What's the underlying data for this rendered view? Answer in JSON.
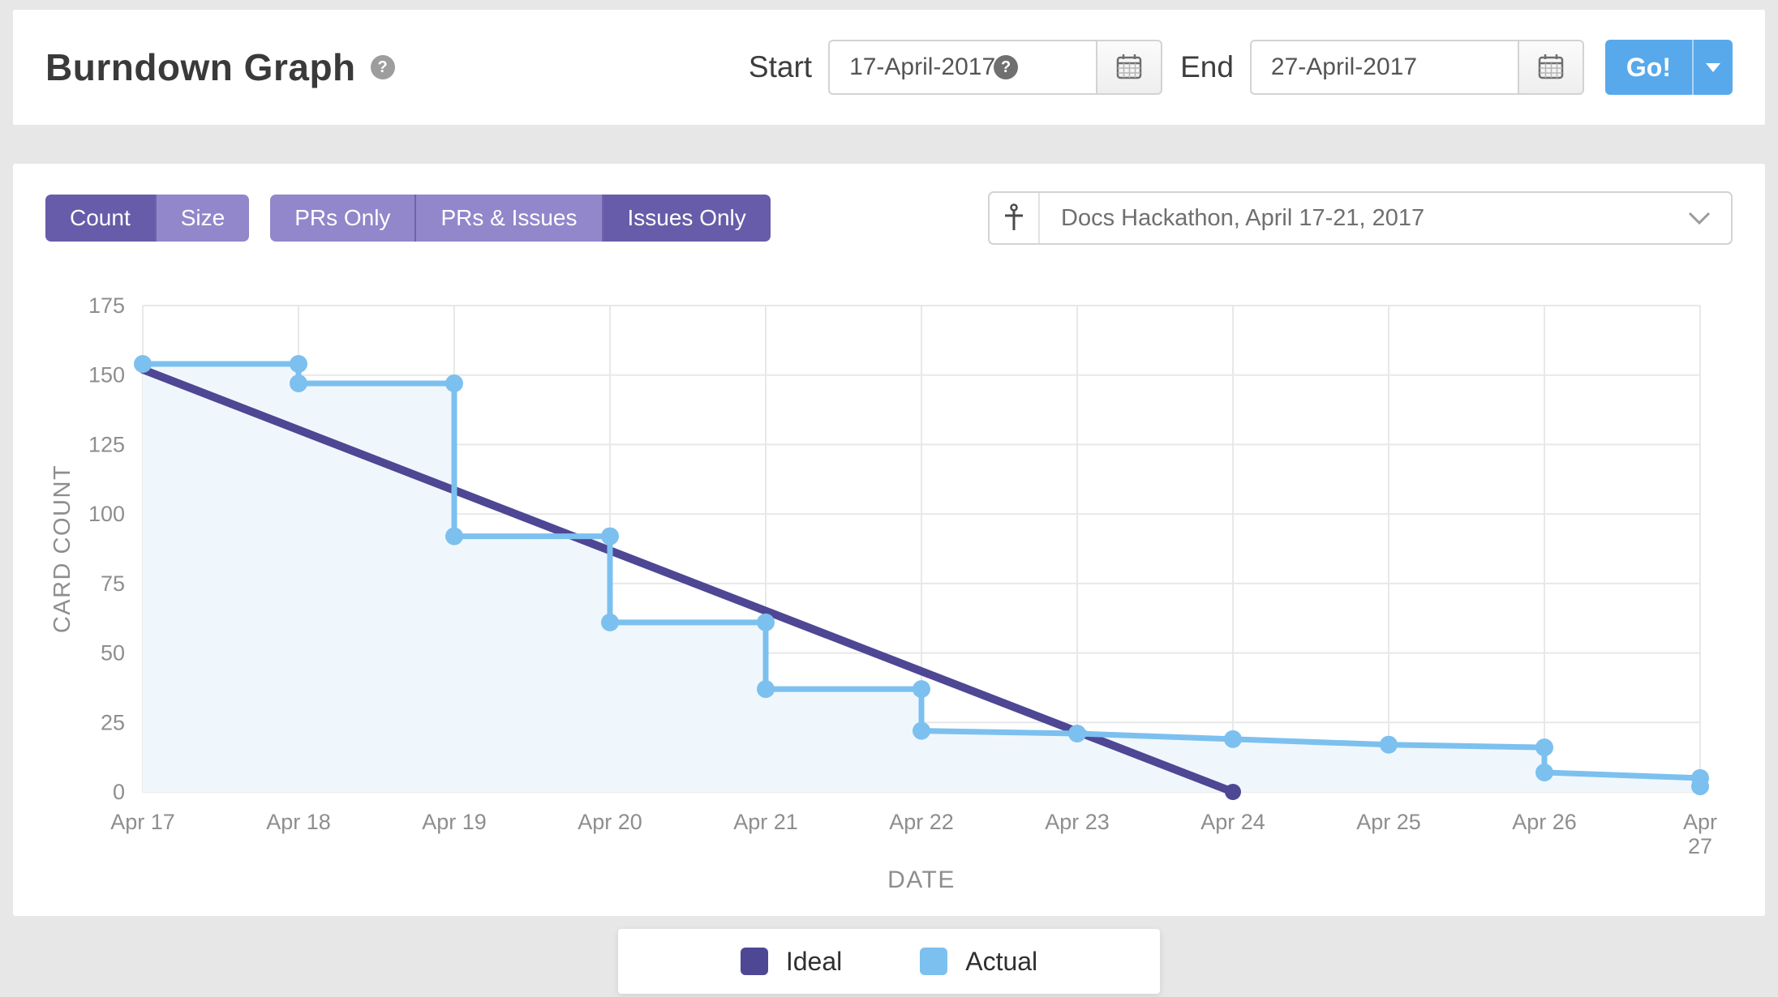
{
  "header": {
    "title": "Burndown Graph",
    "help_icon": "?",
    "start_label": "Start",
    "start_value": "17-April-2017",
    "end_label": "End",
    "end_value": "27-April-2017",
    "go_label": "Go!"
  },
  "toolbar": {
    "count_size": [
      {
        "label": "Count",
        "active": true
      },
      {
        "label": "Size",
        "active": false
      }
    ],
    "filter": [
      {
        "label": "PRs Only",
        "active": false
      },
      {
        "label": "PRs & Issues",
        "active": false
      },
      {
        "label": "Issues Only",
        "active": true
      }
    ],
    "milestone": "Docs Hackathon, April 17-21, 2017"
  },
  "legend": [
    {
      "label": "Ideal",
      "color": "#4e4794"
    },
    {
      "label": "Actual",
      "color": "#7cc0ef"
    }
  ],
  "colors": {
    "accent_blue": "#58a9eb",
    "purple_active": "#675ca9",
    "purple_inactive": "#9187ca",
    "grid": "#e8e8e8",
    "axis_text": "#8e8e8e",
    "actual_fill": "#f0f7fc"
  },
  "chart_data": {
    "type": "line",
    "title": "Burndown",
    "xlabel": "DATE",
    "ylabel": "CARD COUNT",
    "ylim": [
      0,
      175
    ],
    "yticks": [
      0,
      25,
      50,
      75,
      100,
      125,
      150,
      175
    ],
    "categories": [
      "Apr 17",
      "Apr 18",
      "Apr 19",
      "Apr 20",
      "Apr 21",
      "Apr 22",
      "Apr 23",
      "Apr 24",
      "Apr 25",
      "Apr 26",
      "Apr 27"
    ],
    "grid": true,
    "legend_position": "bottom",
    "wrap_last_tick": true,
    "series": [
      {
        "name": "Ideal",
        "color": "#4e4794",
        "width": 10,
        "dots": false,
        "end_dot": true,
        "points": [
          [
            0,
            152
          ],
          [
            7,
            0
          ]
        ]
      },
      {
        "name": "Actual",
        "color": "#7cc0ef",
        "fill": "#f0f7fc",
        "width": 7,
        "dots": true,
        "points": [
          [
            0,
            154
          ],
          [
            1,
            154
          ],
          [
            1,
            147
          ],
          [
            2,
            147
          ],
          [
            2,
            92
          ],
          [
            3,
            92
          ],
          [
            3,
            61
          ],
          [
            4,
            61
          ],
          [
            4,
            37
          ],
          [
            5,
            37
          ],
          [
            5,
            22
          ],
          [
            6,
            21
          ],
          [
            7,
            19
          ],
          [
            8,
            17
          ],
          [
            9,
            16
          ],
          [
            9,
            7
          ],
          [
            10,
            5
          ],
          [
            10,
            2
          ]
        ]
      }
    ]
  }
}
